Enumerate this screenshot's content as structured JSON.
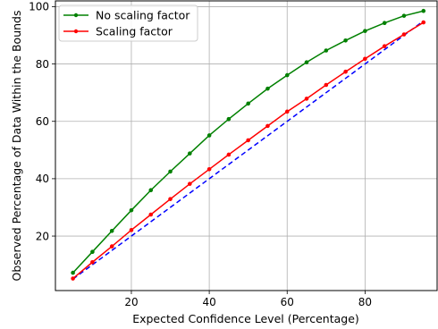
{
  "chart_data": {
    "type": "line",
    "title": "",
    "xlabel": "Expected Confidence Level (Percentage)",
    "ylabel": "Observed Percentage of Data Within the Bounds",
    "xlim": [
      0.5,
      98.5
    ],
    "ylim": [
      1,
      102
    ],
    "xticks": [
      20,
      40,
      60,
      80
    ],
    "yticks": [
      20,
      40,
      60,
      80,
      100
    ],
    "grid": true,
    "legend": "top-left",
    "series": [
      {
        "name": "No scaling factor",
        "color": "#008000",
        "marker": "dot",
        "x": [
          5,
          10,
          15,
          20,
          25,
          30,
          35,
          40,
          45,
          50,
          55,
          60,
          65,
          70,
          75,
          80,
          85,
          90,
          95
        ],
        "y": [
          7.2,
          14.5,
          21.8,
          29.0,
          36.0,
          42.5,
          48.8,
          55.1,
          60.8,
          66.2,
          71.4,
          76.1,
          80.6,
          84.7,
          88.2,
          91.5,
          94.3,
          96.8,
          98.5
        ]
      },
      {
        "name": "Scaling factor",
        "color": "#ff0000",
        "marker": "dot",
        "x": [
          5,
          10,
          15,
          20,
          25,
          30,
          35,
          40,
          45,
          50,
          55,
          60,
          65,
          70,
          75,
          80,
          85,
          90,
          95
        ],
        "y": [
          5.2,
          10.9,
          16.4,
          22.1,
          27.5,
          32.9,
          38.2,
          43.3,
          48.4,
          53.4,
          58.4,
          63.4,
          67.9,
          72.7,
          77.3,
          81.8,
          86.2,
          90.3,
          94.5
        ]
      }
    ],
    "reference_line": {
      "color": "#0000ff",
      "style": "dashed",
      "x": [
        5,
        95
      ],
      "y": [
        5,
        95
      ]
    }
  }
}
